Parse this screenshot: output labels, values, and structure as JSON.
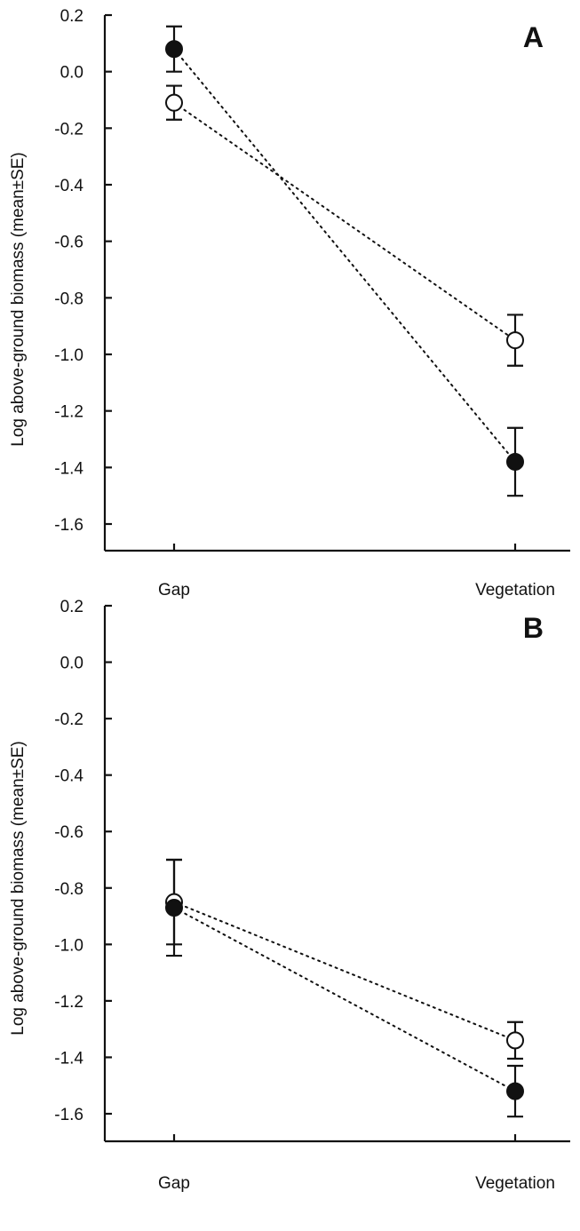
{
  "chart_data": [
    {
      "type": "scatter",
      "panel_label": "A",
      "ylabel": "Log above-ground biomass (mean±SE)",
      "xlabel": "",
      "categories": [
        "Gap",
        "Vegetation"
      ],
      "yticks": [
        "0.2",
        "0.0",
        "-0.2",
        "-0.4",
        "-0.6",
        "-0.8",
        "-1.0",
        "-1.2",
        "-1.4",
        "-1.6"
      ],
      "ylim": [
        -1.7,
        0.2
      ],
      "grid": false,
      "line_style": "dotted",
      "series": [
        {
          "marker": "filled-circle",
          "color": "#111111",
          "values": [
            0.08,
            -1.38
          ],
          "se": [
            0.08,
            0.12
          ]
        },
        {
          "marker": "open-circle",
          "color": "#111111",
          "values": [
            -0.11,
            -0.95
          ],
          "se": [
            0.06,
            0.09
          ]
        }
      ]
    },
    {
      "type": "scatter",
      "panel_label": "B",
      "ylabel": "Log above-ground biomass (mean±SE)",
      "xlabel": "",
      "categories": [
        "Gap",
        "Vegetation"
      ],
      "yticks": [
        "0.2",
        "0.0",
        "-0.2",
        "-0.4",
        "-0.6",
        "-0.8",
        "-1.0",
        "-1.2",
        "-1.4",
        "-1.6"
      ],
      "ylim": [
        -1.7,
        0.2
      ],
      "grid": false,
      "line_style": "dotted",
      "series": [
        {
          "marker": "filled-circle",
          "color": "#111111",
          "values": [
            -0.87,
            -1.52
          ],
          "se": [
            0.17,
            0.09
          ]
        },
        {
          "marker": "open-circle",
          "color": "#111111",
          "values": [
            -0.85,
            -1.34
          ],
          "se": [
            0.15,
            0.065
          ]
        }
      ]
    }
  ]
}
